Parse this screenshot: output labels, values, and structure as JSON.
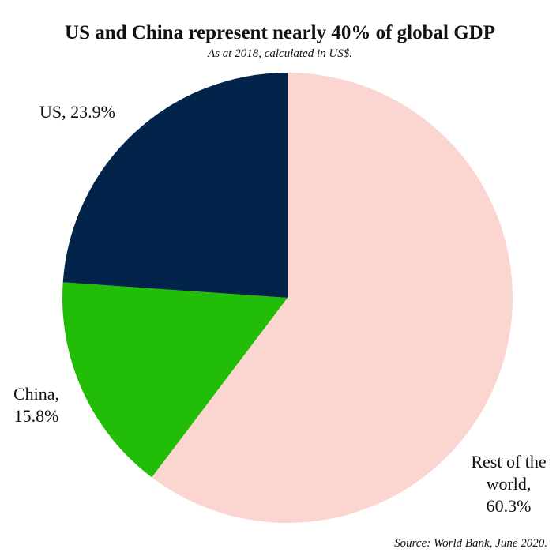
{
  "chart_data": {
    "type": "pie",
    "title": "US and China represent nearly 40% of global GDP",
    "subtitle": "As at 2018, calculated in US$.",
    "source": "Source: World Bank, June 2020.",
    "slices": [
      {
        "label": "Rest of the world",
        "value": 60.3,
        "color": "#fbd6d0",
        "label_lines": [
          "Rest of the",
          "world,",
          "60.3%"
        ]
      },
      {
        "label": "China",
        "value": 15.8,
        "color": "#22bd06",
        "label_lines": [
          "China,",
          "15.8%"
        ]
      },
      {
        "label": "US",
        "value": 23.9,
        "color": "#02234a",
        "label_lines": [
          "US, 23.9%"
        ]
      }
    ],
    "legend": "none"
  }
}
